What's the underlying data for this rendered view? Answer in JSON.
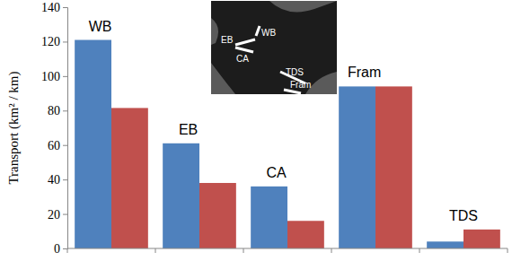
{
  "chart_data": {
    "type": "bar",
    "y_label": "Transport (km² / km)",
    "categories": [
      "WB",
      "EB",
      "CA",
      "Fram",
      "TDS"
    ],
    "series": [
      {
        "color": "#4f81bd",
        "values": [
          121,
          61,
          36,
          94,
          4
        ]
      },
      {
        "color": "#c0504d",
        "values": [
          81.5,
          38,
          16,
          94,
          11
        ]
      }
    ],
    "ylim": [
      0,
      140
    ],
    "yticks": [
      0,
      20,
      40,
      60,
      80,
      100,
      120,
      140
    ],
    "grid": false,
    "tick_labels": "y",
    "annotations": [
      "EB",
      "WB",
      "CA",
      "TDS",
      "Fram"
    ]
  }
}
